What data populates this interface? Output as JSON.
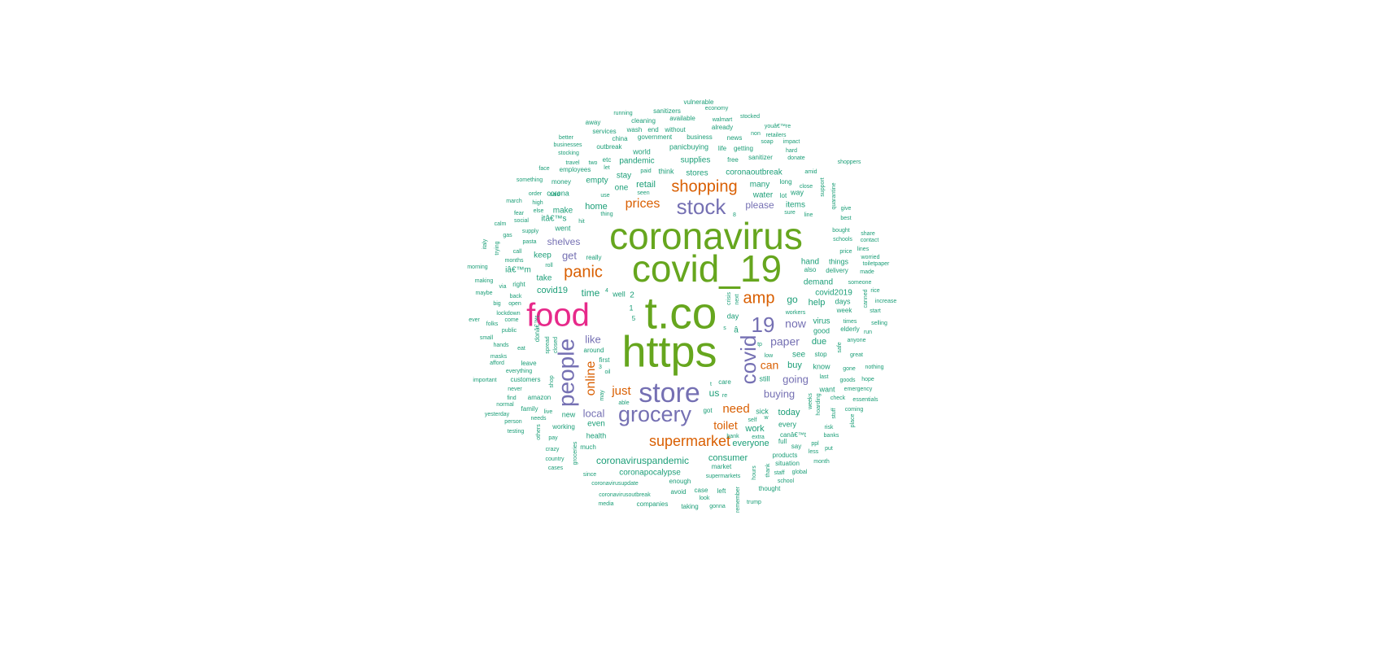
{
  "colors": {
    "green": "#66a61e",
    "pink": "#e7298a",
    "purple": "#7570b3",
    "orange": "#d95f02",
    "teal": "#1b9e77"
  },
  "words": [
    {
      "text": "coronavirus",
      "color": "green"
    },
    {
      "text": "covid_19",
      "color": "green"
    },
    {
      "text": "t.co",
      "color": "green"
    },
    {
      "text": "https",
      "color": "green"
    },
    {
      "text": "food",
      "color": "pink"
    },
    {
      "text": "store",
      "color": "purple"
    },
    {
      "text": "grocery",
      "color": "purple"
    },
    {
      "text": "people",
      "color": "purple"
    },
    {
      "text": "stock",
      "color": "purple"
    },
    {
      "text": "covid",
      "color": "purple"
    },
    {
      "text": "19",
      "color": "purple"
    },
    {
      "text": "shopping",
      "color": "orange"
    },
    {
      "text": "supermarket",
      "color": "orange"
    },
    {
      "text": "amp",
      "color": "orange"
    },
    {
      "text": "panic",
      "color": "orange"
    },
    {
      "text": "prices",
      "color": "orange"
    },
    {
      "text": "online",
      "color": "orange"
    },
    {
      "text": "just",
      "color": "orange"
    },
    {
      "text": "need",
      "color": "orange"
    },
    {
      "text": "toilet",
      "color": "orange"
    },
    {
      "text": "can",
      "color": "orange"
    },
    {
      "text": "paper",
      "color": "purple"
    },
    {
      "text": "now",
      "color": "purple"
    },
    {
      "text": "like",
      "color": "purple"
    },
    {
      "text": "local",
      "color": "purple"
    },
    {
      "text": "buying",
      "color": "purple"
    },
    {
      "text": "going",
      "color": "purple"
    },
    {
      "text": "get",
      "color": "purple"
    },
    {
      "text": "please",
      "color": "purple"
    },
    {
      "text": "shelves",
      "color": "purple"
    },
    {
      "text": "coronaviruspandemic",
      "color": "teal"
    },
    {
      "text": "consumer",
      "color": "teal"
    },
    {
      "text": "everyone",
      "color": "teal"
    },
    {
      "text": "retail",
      "color": "teal"
    },
    {
      "text": "home",
      "color": "teal"
    },
    {
      "text": "today",
      "color": "teal"
    },
    {
      "text": "work",
      "color": "teal"
    },
    {
      "text": "covid19",
      "color": "teal"
    },
    {
      "text": "time",
      "color": "teal"
    },
    {
      "text": "help",
      "color": "teal"
    },
    {
      "text": "buy",
      "color": "teal"
    },
    {
      "text": "due",
      "color": "teal"
    },
    {
      "text": "go",
      "color": "teal"
    },
    {
      "text": "stores",
      "color": "teal"
    },
    {
      "text": "supplies",
      "color": "teal"
    },
    {
      "text": "pandemic",
      "color": "teal"
    },
    {
      "text": "coronaoutbreak",
      "color": "teal"
    },
    {
      "text": "coronapocalypse",
      "color": "teal"
    },
    {
      "text": "demand",
      "color": "teal"
    },
    {
      "text": "covid2019",
      "color": "teal"
    },
    {
      "text": "items",
      "color": "teal"
    },
    {
      "text": "many",
      "color": "teal"
    },
    {
      "text": "water",
      "color": "teal"
    },
    {
      "text": "empty",
      "color": "teal"
    },
    {
      "text": "make",
      "color": "teal"
    },
    {
      "text": "one",
      "color": "teal"
    },
    {
      "text": "stay",
      "color": "teal"
    },
    {
      "text": "think",
      "color": "teal"
    },
    {
      "text": "panicbuying",
      "color": "teal"
    },
    {
      "text": "world",
      "color": "teal"
    },
    {
      "text": "keep",
      "color": "teal"
    },
    {
      "text": "take",
      "color": "teal"
    },
    {
      "text": "itâ€™s",
      "color": "teal"
    },
    {
      "text": "iâ€™m",
      "color": "teal"
    },
    {
      "text": "went",
      "color": "teal"
    },
    {
      "text": "corona",
      "color": "teal"
    },
    {
      "text": "new",
      "color": "teal"
    },
    {
      "text": "even",
      "color": "teal"
    },
    {
      "text": "health",
      "color": "teal"
    },
    {
      "text": "working",
      "color": "teal"
    },
    {
      "text": "much",
      "color": "teal"
    },
    {
      "text": "see",
      "color": "teal"
    },
    {
      "text": "still",
      "color": "teal"
    },
    {
      "text": "know",
      "color": "teal"
    },
    {
      "text": "want",
      "color": "teal"
    },
    {
      "text": "sick",
      "color": "teal"
    },
    {
      "text": "every",
      "color": "teal"
    },
    {
      "text": "virus",
      "color": "teal"
    },
    {
      "text": "good",
      "color": "teal"
    },
    {
      "text": "days",
      "color": "teal"
    },
    {
      "text": "week",
      "color": "teal"
    },
    {
      "text": "hand",
      "color": "teal"
    },
    {
      "text": "things",
      "color": "teal"
    },
    {
      "text": "delivery",
      "color": "teal"
    },
    {
      "text": "also",
      "color": "teal"
    },
    {
      "text": "way",
      "color": "teal"
    },
    {
      "text": "long",
      "color": "teal"
    },
    {
      "text": "lot",
      "color": "teal"
    },
    {
      "text": "sanitizer",
      "color": "teal"
    },
    {
      "text": "getting",
      "color": "teal"
    },
    {
      "text": "free",
      "color": "teal"
    },
    {
      "text": "life",
      "color": "teal"
    },
    {
      "text": "news",
      "color": "teal"
    },
    {
      "text": "business",
      "color": "teal"
    },
    {
      "text": "government",
      "color": "teal"
    },
    {
      "text": "without",
      "color": "teal"
    },
    {
      "text": "already",
      "color": "teal"
    },
    {
      "text": "available",
      "color": "teal"
    },
    {
      "text": "walmart",
      "color": "teal"
    },
    {
      "text": "cleaning",
      "color": "teal"
    },
    {
      "text": "sanitizers",
      "color": "teal"
    },
    {
      "text": "vulnerable",
      "color": "teal"
    },
    {
      "text": "economy",
      "color": "teal"
    },
    {
      "text": "running",
      "color": "teal"
    },
    {
      "text": "stocked",
      "color": "teal"
    },
    {
      "text": "away",
      "color": "teal"
    },
    {
      "text": "services",
      "color": "teal"
    },
    {
      "text": "wash",
      "color": "teal"
    },
    {
      "text": "end",
      "color": "teal"
    },
    {
      "text": "china",
      "color": "teal"
    },
    {
      "text": "outbreak",
      "color": "teal"
    },
    {
      "text": "better",
      "color": "teal"
    },
    {
      "text": "businesses",
      "color": "teal"
    },
    {
      "text": "stocking",
      "color": "teal"
    },
    {
      "text": "travel",
      "color": "teal"
    },
    {
      "text": "two",
      "color": "teal"
    },
    {
      "text": "etc",
      "color": "teal"
    },
    {
      "text": "let",
      "color": "teal"
    },
    {
      "text": "paid",
      "color": "teal"
    },
    {
      "text": "face",
      "color": "teal"
    },
    {
      "text": "employees",
      "color": "teal"
    },
    {
      "text": "something",
      "color": "teal"
    },
    {
      "text": "money",
      "color": "teal"
    },
    {
      "text": "order",
      "color": "teal"
    },
    {
      "text": "said",
      "color": "teal"
    },
    {
      "text": "use",
      "color": "teal"
    },
    {
      "text": "seen",
      "color": "teal"
    },
    {
      "text": "march",
      "color": "teal"
    },
    {
      "text": "high",
      "color": "teal"
    },
    {
      "text": "fear",
      "color": "teal"
    },
    {
      "text": "else",
      "color": "teal"
    },
    {
      "text": "thing",
      "color": "teal"
    },
    {
      "text": "hit",
      "color": "teal"
    },
    {
      "text": "calm",
      "color": "teal"
    },
    {
      "text": "social",
      "color": "teal"
    },
    {
      "text": "gas",
      "color": "teal"
    },
    {
      "text": "supply",
      "color": "teal"
    },
    {
      "text": "pasta",
      "color": "teal"
    },
    {
      "text": "italy",
      "color": "teal"
    },
    {
      "text": "trying",
      "color": "teal"
    },
    {
      "text": "call",
      "color": "teal"
    },
    {
      "text": "months",
      "color": "teal"
    },
    {
      "text": "roll",
      "color": "teal"
    },
    {
      "text": "really",
      "color": "teal"
    },
    {
      "text": "morning",
      "color": "teal"
    },
    {
      "text": "making",
      "color": "teal"
    },
    {
      "text": "via",
      "color": "teal"
    },
    {
      "text": "right",
      "color": "teal"
    },
    {
      "text": "maybe",
      "color": "teal"
    },
    {
      "text": "back",
      "color": "teal"
    },
    {
      "text": "big",
      "color": "teal"
    },
    {
      "text": "open",
      "color": "teal"
    },
    {
      "text": "well",
      "color": "teal"
    },
    {
      "text": "4",
      "color": "teal"
    },
    {
      "text": "2",
      "color": "teal"
    },
    {
      "text": "1",
      "color": "teal"
    },
    {
      "text": "5",
      "color": "teal"
    },
    {
      "text": "lockdown",
      "color": "teal"
    },
    {
      "text": "ever",
      "color": "teal"
    },
    {
      "text": "folks",
      "color": "teal"
    },
    {
      "text": "come",
      "color": "teal"
    },
    {
      "text": "donâ€™t",
      "color": "teal"
    },
    {
      "text": "public",
      "color": "teal"
    },
    {
      "text": "small",
      "color": "teal"
    },
    {
      "text": "hands",
      "color": "teal"
    },
    {
      "text": "eat",
      "color": "teal"
    },
    {
      "text": "spread",
      "color": "teal"
    },
    {
      "text": "closed",
      "color": "teal"
    },
    {
      "text": "around",
      "color": "teal"
    },
    {
      "text": "first",
      "color": "teal"
    },
    {
      "text": "3",
      "color": "teal"
    },
    {
      "text": "oil",
      "color": "teal"
    },
    {
      "text": "masks",
      "color": "teal"
    },
    {
      "text": "afford",
      "color": "teal"
    },
    {
      "text": "leave",
      "color": "teal"
    },
    {
      "text": "everything",
      "color": "teal"
    },
    {
      "text": "important",
      "color": "teal"
    },
    {
      "text": "customers",
      "color": "teal"
    },
    {
      "text": "shop",
      "color": "teal"
    },
    {
      "text": "may",
      "color": "teal"
    },
    {
      "text": "never",
      "color": "teal"
    },
    {
      "text": "find",
      "color": "teal"
    },
    {
      "text": "amazon",
      "color": "teal"
    },
    {
      "text": "normal",
      "color": "teal"
    },
    {
      "text": "able",
      "color": "teal"
    },
    {
      "text": "family",
      "color": "teal"
    },
    {
      "text": "live",
      "color": "teal"
    },
    {
      "text": "yesterday",
      "color": "teal"
    },
    {
      "text": "person",
      "color": "teal"
    },
    {
      "text": "needs",
      "color": "teal"
    },
    {
      "text": "testing",
      "color": "teal"
    },
    {
      "text": "others",
      "color": "teal"
    },
    {
      "text": "pay",
      "color": "teal"
    },
    {
      "text": "crazy",
      "color": "teal"
    },
    {
      "text": "country",
      "color": "teal"
    },
    {
      "text": "groceries",
      "color": "teal"
    },
    {
      "text": "cases",
      "color": "teal"
    },
    {
      "text": "since",
      "color": "teal"
    },
    {
      "text": "coronavirusupdate",
      "color": "teal"
    },
    {
      "text": "coronavirusoutbreak",
      "color": "teal"
    },
    {
      "text": "media",
      "color": "teal"
    },
    {
      "text": "companies",
      "color": "teal"
    },
    {
      "text": "enough",
      "color": "teal"
    },
    {
      "text": "avoid",
      "color": "teal"
    },
    {
      "text": "case",
      "color": "teal"
    },
    {
      "text": "look",
      "color": "teal"
    },
    {
      "text": "taking",
      "color": "teal"
    },
    {
      "text": "left",
      "color": "teal"
    },
    {
      "text": "gonna",
      "color": "teal"
    },
    {
      "text": "remember",
      "color": "teal"
    },
    {
      "text": "market",
      "color": "teal"
    },
    {
      "text": "supermarkets",
      "color": "teal"
    },
    {
      "text": "hours",
      "color": "teal"
    },
    {
      "text": "thank",
      "color": "teal"
    },
    {
      "text": "thought",
      "color": "teal"
    },
    {
      "text": "trump",
      "color": "teal"
    },
    {
      "text": "school",
      "color": "teal"
    },
    {
      "text": "staff",
      "color": "teal"
    },
    {
      "text": "global",
      "color": "teal"
    },
    {
      "text": "situation",
      "color": "teal"
    },
    {
      "text": "products",
      "color": "teal"
    },
    {
      "text": "month",
      "color": "teal"
    },
    {
      "text": "less",
      "color": "teal"
    },
    {
      "text": "put",
      "color": "teal"
    },
    {
      "text": "ppl",
      "color": "teal"
    },
    {
      "text": "say",
      "color": "teal"
    },
    {
      "text": "full",
      "color": "teal"
    },
    {
      "text": "canâ€™t",
      "color": "teal"
    },
    {
      "text": "extra",
      "color": "teal"
    },
    {
      "text": "bank",
      "color": "teal"
    },
    {
      "text": "self",
      "color": "teal"
    },
    {
      "text": "w",
      "color": "teal"
    },
    {
      "text": "got",
      "color": "teal"
    },
    {
      "text": "re",
      "color": "teal"
    },
    {
      "text": "t",
      "color": "teal"
    },
    {
      "text": "care",
      "color": "teal"
    },
    {
      "text": "risk",
      "color": "teal"
    },
    {
      "text": "banks",
      "color": "teal"
    },
    {
      "text": "hoarding",
      "color": "teal"
    },
    {
      "text": "weeks",
      "color": "teal"
    },
    {
      "text": "stuff",
      "color": "teal"
    },
    {
      "text": "check",
      "color": "teal"
    },
    {
      "text": "coming",
      "color": "teal"
    },
    {
      "text": "place",
      "color": "teal"
    },
    {
      "text": "essentials",
      "color": "teal"
    },
    {
      "text": "emergency",
      "color": "teal"
    },
    {
      "text": "hope",
      "color": "teal"
    },
    {
      "text": "goods",
      "color": "teal"
    },
    {
      "text": "gone",
      "color": "teal"
    },
    {
      "text": "nothing",
      "color": "teal"
    },
    {
      "text": "last",
      "color": "teal"
    },
    {
      "text": "great",
      "color": "teal"
    },
    {
      "text": "stop",
      "color": "teal"
    },
    {
      "text": "safe",
      "color": "teal"
    },
    {
      "text": "anyone",
      "color": "teal"
    },
    {
      "text": "elderly",
      "color": "teal"
    },
    {
      "text": "run",
      "color": "teal"
    },
    {
      "text": "times",
      "color": "teal"
    },
    {
      "text": "selling",
      "color": "teal"
    },
    {
      "text": "start",
      "color": "teal"
    },
    {
      "text": "increase",
      "color": "teal"
    },
    {
      "text": "canned",
      "color": "teal"
    },
    {
      "text": "rice",
      "color": "teal"
    },
    {
      "text": "someone",
      "color": "teal"
    },
    {
      "text": "made",
      "color": "teal"
    },
    {
      "text": "toiletpaper",
      "color": "teal"
    },
    {
      "text": "worried",
      "color": "teal"
    },
    {
      "text": "lines",
      "color": "teal"
    },
    {
      "text": "price",
      "color": "teal"
    },
    {
      "text": "contact",
      "color": "teal"
    },
    {
      "text": "share",
      "color": "teal"
    },
    {
      "text": "schools",
      "color": "teal"
    },
    {
      "text": "bought",
      "color": "teal"
    },
    {
      "text": "best",
      "color": "teal"
    },
    {
      "text": "give",
      "color": "teal"
    },
    {
      "text": "quarantine",
      "color": "teal"
    },
    {
      "text": "support",
      "color": "teal"
    },
    {
      "text": "line",
      "color": "teal"
    },
    {
      "text": "sure",
      "color": "teal"
    },
    {
      "text": "close",
      "color": "teal"
    },
    {
      "text": "amid",
      "color": "teal"
    },
    {
      "text": "shoppers",
      "color": "teal"
    },
    {
      "text": "donate",
      "color": "teal"
    },
    {
      "text": "hard",
      "color": "teal"
    },
    {
      "text": "impact",
      "color": "teal"
    },
    {
      "text": "soap",
      "color": "teal"
    },
    {
      "text": "retailers",
      "color": "teal"
    },
    {
      "text": "youâ€™re",
      "color": "teal"
    },
    {
      "text": "non",
      "color": "teal"
    },
    {
      "text": "workers",
      "color": "teal"
    },
    {
      "text": "day",
      "color": "teal"
    },
    {
      "text": "â",
      "color": "teal"
    },
    {
      "text": "s",
      "color": "teal"
    },
    {
      "text": "tp",
      "color": "teal"
    },
    {
      "text": "low",
      "color": "teal"
    },
    {
      "text": "us",
      "color": "teal"
    },
    {
      "text": "crisis",
      "color": "teal"
    },
    {
      "text": "next",
      "color": "teal"
    },
    {
      "text": "8",
      "color": "teal"
    }
  ]
}
